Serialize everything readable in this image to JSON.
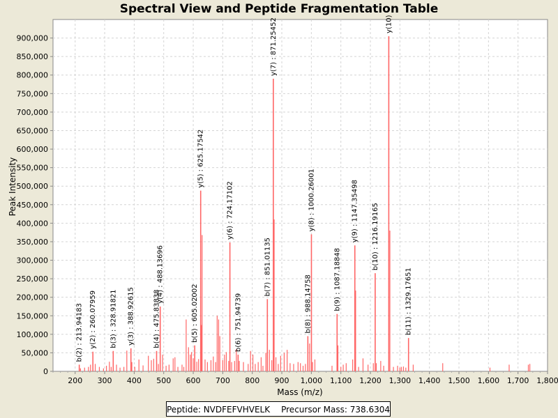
{
  "chart_data": {
    "type": "bar",
    "title": "Spectral View and Peptide Fragmentation Table",
    "xlabel": "Mass (m/z)",
    "ylabel": "Peak Intensity",
    "xlim": [
      125,
      1800
    ],
    "ylim": [
      0,
      950000
    ],
    "x_ticks": [
      200,
      300,
      400,
      500,
      600,
      700,
      800,
      900,
      1000,
      1100,
      1200,
      1300,
      1400,
      1500,
      1600,
      1700,
      1800
    ],
    "x_tick_labels": [
      "200",
      "300",
      "400",
      "500",
      "600",
      "700",
      "800",
      "900",
      "1,000",
      "1,100",
      "1,200",
      "1,300",
      "1,400",
      "1,500",
      "1,600",
      "1,700",
      "1,800"
    ],
    "y_ticks": [
      0,
      50000,
      100000,
      150000,
      200000,
      250000,
      300000,
      350000,
      400000,
      450000,
      500000,
      550000,
      600000,
      650000,
      700000,
      750000,
      800000,
      850000,
      900000
    ],
    "y_tick_labels": [
      "0",
      "50,000",
      "100,000",
      "150,000",
      "200,000",
      "250,000",
      "300,000",
      "350,000",
      "400,000",
      "450,000",
      "500,000",
      "550,000",
      "600,000",
      "650,000",
      "700,000",
      "750,000",
      "800,000",
      "850,000",
      "900,000"
    ],
    "grid": true,
    "bar_color": "#ff6666",
    "annotated_peaks": [
      {
        "label": "b(2) : 213.94183",
        "x": 213.94,
        "y": 18000
      },
      {
        "label": "y(2) : 260.07959",
        "x": 260.08,
        "y": 53000
      },
      {
        "label": "b(3) : 328.91821",
        "x": 328.92,
        "y": 55000
      },
      {
        "label": "y(3) : 388.92615",
        "x": 388.93,
        "y": 62000
      },
      {
        "label": "b(4) : 475.83838",
        "x": 475.84,
        "y": 55000
      },
      {
        "label": "y(4) : 488.13696",
        "x": 488.14,
        "y": 175000
      },
      {
        "label": "b(5) : 605.02002",
        "x": 605.02,
        "y": 70000
      },
      {
        "label": "y(5) : 625.17542",
        "x": 625.18,
        "y": 488000
      },
      {
        "label": "y(6) : 724.17102",
        "x": 724.17,
        "y": 348000
      },
      {
        "label": "b(6) : 751.94739",
        "x": 751.95,
        "y": 45000
      },
      {
        "label": "b(7) : 851.01135",
        "x": 851.01,
        "y": 195000
      },
      {
        "label": "y(7) : 871.25452",
        "x": 871.25,
        "y": 790000
      },
      {
        "label": "b(8) : 988.14758",
        "x": 988.15,
        "y": 95000
      },
      {
        "label": "y(8) : 1000.26001",
        "x": 1000.26,
        "y": 370000
      },
      {
        "label": "b(9) : 1087.18848",
        "x": 1087.19,
        "y": 155000
      },
      {
        "label": "y(9) : 1147.35498",
        "x": 1147.35,
        "y": 340000
      },
      {
        "label": "b(10) : 1216.19165",
        "x": 1216.19,
        "y": 265000
      },
      {
        "label": "y(10)",
        "x": 1262.3,
        "y": 905000
      },
      {
        "label": "b(11) : 1329.17651",
        "x": 1329.18,
        "y": 90000
      }
    ],
    "other_peaks": [
      [
        218,
        8000
      ],
      [
        232,
        10000
      ],
      [
        245,
        12000
      ],
      [
        252,
        18000
      ],
      [
        268,
        20000
      ],
      [
        282,
        12000
      ],
      [
        296,
        8000
      ],
      [
        306,
        15000
      ],
      [
        316,
        26000
      ],
      [
        322,
        12000
      ],
      [
        340,
        18000
      ],
      [
        352,
        10000
      ],
      [
        365,
        12000
      ],
      [
        375,
        56000
      ],
      [
        392,
        25000
      ],
      [
        402,
        12000
      ],
      [
        416,
        32000
      ],
      [
        430,
        16000
      ],
      [
        448,
        42000
      ],
      [
        458,
        30000
      ],
      [
        466,
        34000
      ],
      [
        482,
        20000
      ],
      [
        496,
        45000
      ],
      [
        508,
        15000
      ],
      [
        518,
        18000
      ],
      [
        532,
        35000
      ],
      [
        538,
        38000
      ],
      [
        548,
        12000
      ],
      [
        562,
        18000
      ],
      [
        568,
        12000
      ],
      [
        576,
        140000
      ],
      [
        584,
        65000
      ],
      [
        590,
        45000
      ],
      [
        594,
        52000
      ],
      [
        600,
        35000
      ],
      [
        612,
        26000
      ],
      [
        618,
        33000
      ],
      [
        628,
        125000
      ],
      [
        630,
        368000
      ],
      [
        640,
        32000
      ],
      [
        648,
        25000
      ],
      [
        660,
        30000
      ],
      [
        668,
        40000
      ],
      [
        676,
        25000
      ],
      [
        681,
        150000
      ],
      [
        686,
        140000
      ],
      [
        690,
        95000
      ],
      [
        700,
        30000
      ],
      [
        706,
        45000
      ],
      [
        712,
        52000
      ],
      [
        720,
        28000
      ],
      [
        730,
        25000
      ],
      [
        740,
        28000
      ],
      [
        746,
        60000
      ],
      [
        756,
        28000
      ],
      [
        770,
        25000
      ],
      [
        786,
        20000
      ],
      [
        794,
        55000
      ],
      [
        802,
        45000
      ],
      [
        810,
        20000
      ],
      [
        820,
        25000
      ],
      [
        830,
        38000
      ],
      [
        836,
        15000
      ],
      [
        846,
        50000
      ],
      [
        858,
        58000
      ],
      [
        866,
        30000
      ],
      [
        874,
        410000
      ],
      [
        880,
        38000
      ],
      [
        888,
        20000
      ],
      [
        896,
        42000
      ],
      [
        908,
        50000
      ],
      [
        918,
        58000
      ],
      [
        928,
        22000
      ],
      [
        940,
        20000
      ],
      [
        955,
        25000
      ],
      [
        963,
        22000
      ],
      [
        972,
        15000
      ],
      [
        980,
        20000
      ],
      [
        994,
        75000
      ],
      [
        1004,
        25000
      ],
      [
        1012,
        32000
      ],
      [
        1070,
        15000
      ],
      [
        1090,
        70000
      ],
      [
        1100,
        12000
      ],
      [
        1108,
        18000
      ],
      [
        1118,
        22000
      ],
      [
        1140,
        32000
      ],
      [
        1150,
        218000
      ],
      [
        1160,
        12000
      ],
      [
        1175,
        35000
      ],
      [
        1192,
        18000
      ],
      [
        1210,
        22000
      ],
      [
        1220,
        22000
      ],
      [
        1235,
        28000
      ],
      [
        1245,
        15000
      ],
      [
        1266,
        380000
      ],
      [
        1278,
        12000
      ],
      [
        1292,
        15000
      ],
      [
        1300,
        10000
      ],
      [
        1305,
        12000
      ],
      [
        1312,
        13000
      ],
      [
        1320,
        10000
      ],
      [
        1345,
        18000
      ],
      [
        1445,
        22000
      ],
      [
        1605,
        10000
      ],
      [
        1670,
        18000
      ],
      [
        1735,
        18000
      ],
      [
        1740,
        20000
      ]
    ]
  },
  "legend": {
    "peptide_label": "Peptide: NVDFEFVHVELK",
    "precursor_label": "Precursor Mass: 738.6304"
  }
}
